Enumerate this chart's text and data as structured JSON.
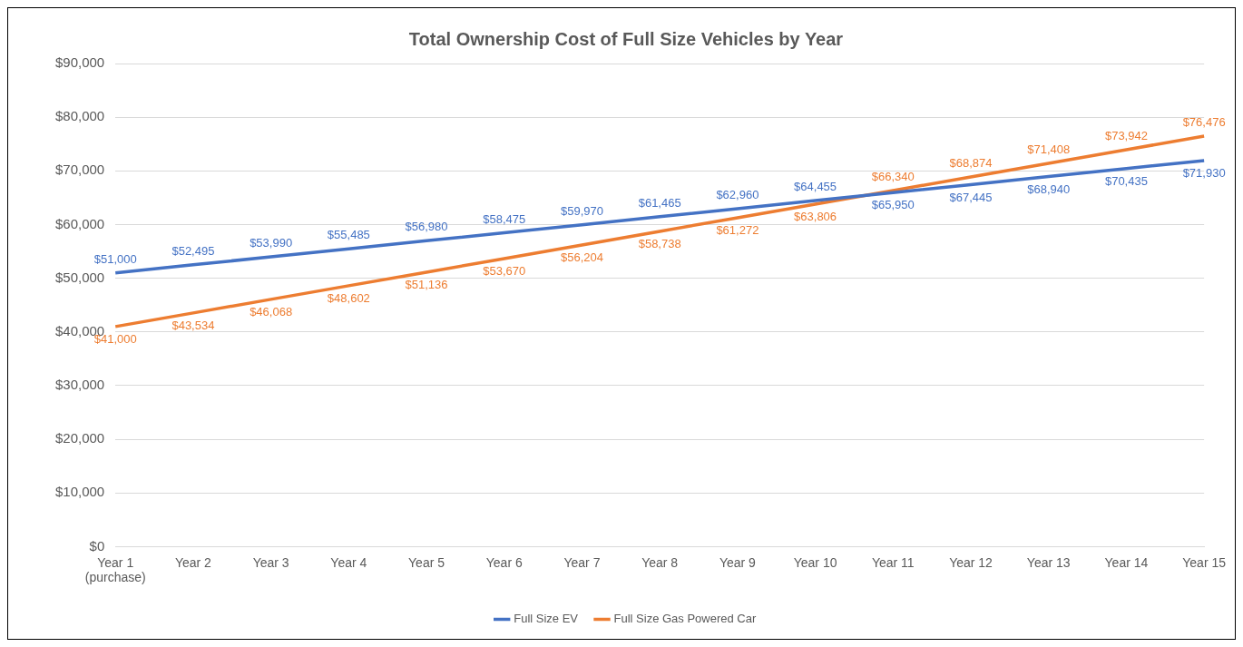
{
  "chart_data": {
    "type": "line",
    "title": "Total Ownership Cost of Full Size Vehicles by Year",
    "categories": [
      "Year 1\n(purchase)",
      "Year 2",
      "Year 3",
      "Year 4",
      "Year 5",
      "Year 6",
      "Year 7",
      "Year 8",
      "Year 9",
      "Year 10",
      "Year 11",
      "Year 12",
      "Year 13",
      "Year 14",
      "Year 15"
    ],
    "series": [
      {
        "name": "Full Size EV",
        "color": "#4472c4",
        "values": [
          51000,
          52495,
          53990,
          55485,
          56980,
          58475,
          59970,
          61465,
          62960,
          64455,
          65950,
          67445,
          68940,
          70435,
          71930
        ],
        "value_labels": [
          "$51,000",
          "$52,495",
          "$53,990",
          "$55,485",
          "$56,980",
          "$58,475",
          "$59,970",
          "$61,465",
          "$62,960",
          "$64,455",
          "$65,950",
          "$67,445",
          "$68,940",
          "$70,435",
          "$71,930"
        ]
      },
      {
        "name": "Full Size Gas Powered Car",
        "color": "#ed7d31",
        "values": [
          41000,
          43534,
          46068,
          48602,
          51136,
          53670,
          56204,
          58738,
          61272,
          63806,
          66340,
          68874,
          71408,
          73942,
          76476
        ],
        "value_labels": [
          "$41,000",
          "$43,534",
          "$46,068",
          "$48,602",
          "$51,136",
          "$53,670",
          "$56,204",
          "$58,738",
          "$61,272",
          "$63,806",
          "$66,340",
          "$68,874",
          "$71,408",
          "$73,942",
          "$76,476"
        ]
      }
    ],
    "ylim": [
      0,
      90000
    ],
    "yticks": [
      {
        "value": 0,
        "label": "$0"
      },
      {
        "value": 10000,
        "label": "$10,000"
      },
      {
        "value": 20000,
        "label": "$20,000"
      },
      {
        "value": 30000,
        "label": "$30,000"
      },
      {
        "value": 40000,
        "label": "$40,000"
      },
      {
        "value": 50000,
        "label": "$50,000"
      },
      {
        "value": 60000,
        "label": "$60,000"
      },
      {
        "value": 70000,
        "label": "$70,000"
      },
      {
        "value": 80000,
        "label": "$80,000"
      },
      {
        "value": 90000,
        "label": "$90,000"
      }
    ],
    "grid": "y",
    "legend": "bottom",
    "marker": "none",
    "line_style": "solid"
  }
}
